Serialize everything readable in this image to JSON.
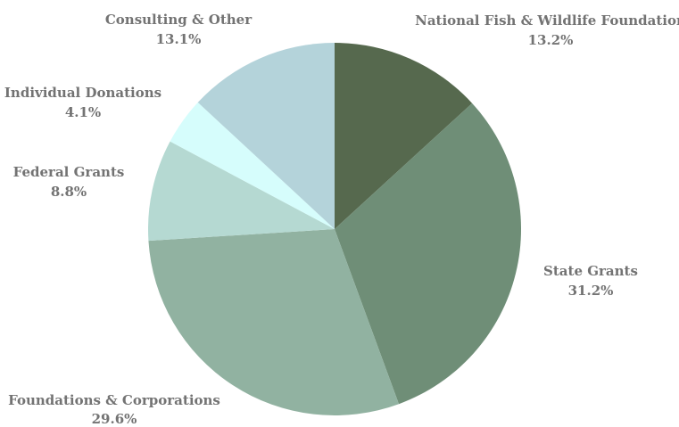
{
  "chart_data": {
    "type": "pie",
    "title": "",
    "slices": [
      {
        "label": "National Fish & Wildlife Foundation",
        "value": 13.2,
        "value_label": "13.2%",
        "color": "#56694e"
      },
      {
        "label": "State Grants",
        "value": 31.2,
        "value_label": "31.2%",
        "color": "#6f8e77"
      },
      {
        "label": "Foundations & Corporations",
        "value": 29.6,
        "value_label": "29.6%",
        "color": "#91b2a1"
      },
      {
        "label": "Federal Grants",
        "value": 8.8,
        "value_label": "8.8%",
        "color": "#b5d9d2"
      },
      {
        "label": "Individual Donations",
        "value": 4.1,
        "value_label": "4.1%",
        "color": "#d6fdfc"
      },
      {
        "label": "Consulting & Other",
        "value": 13.1,
        "value_label": "13.1%",
        "color": "#b4d3da"
      }
    ],
    "start_angle": "12 o'clock",
    "direction": "clockwise",
    "legend": "none (labels beside slices)"
  }
}
